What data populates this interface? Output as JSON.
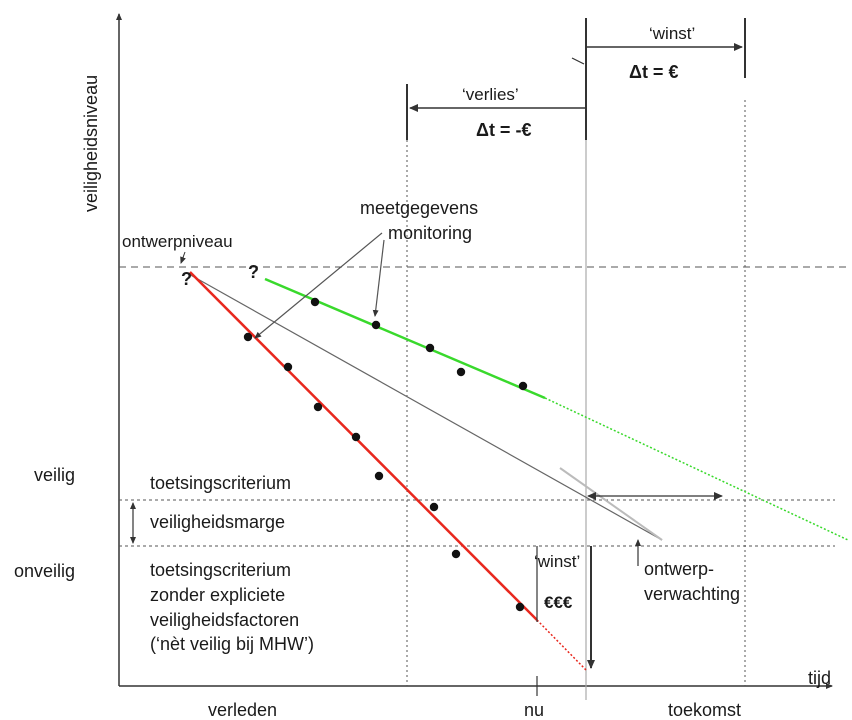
{
  "axes": {
    "y_label": "veiligheidsniveau",
    "x_label": "tijd",
    "x_ticks": {
      "past": "verleden",
      "now": "nu",
      "future": "toekomst"
    },
    "y_ticks": {
      "safe": "veilig",
      "unsafe": "onveilig"
    }
  },
  "annotations": {
    "design_level": "ontwerpniveau",
    "measurements_line1": "meetgegevens",
    "measurements_line2": "monitoring",
    "question_mark": "?",
    "gain_top": "‘winst’",
    "gain_top_formula": "Δt = €",
    "loss_top": "‘verlies’",
    "loss_top_formula": "Δt = -€",
    "criterion": "toetsingscriterium",
    "safety_margin": "veiligheidsmarge",
    "criterion_no_factors_1": "toetsingscriterium",
    "criterion_no_factors_2": "zonder expliciete",
    "criterion_no_factors_3": "veiligheidsfactoren",
    "criterion_no_factors_4": "(‘nèt veilig bij MHW’)",
    "gain_bottom": "‘winst’",
    "gain_bottom_money": "€€€",
    "design_expectation_1": "ontwerp-",
    "design_expectation_2": "verwachting"
  },
  "colors": {
    "red_line": "#e8281e",
    "green_line": "#39d92c",
    "gray_line": "#777777",
    "axis": "#333333"
  }
}
